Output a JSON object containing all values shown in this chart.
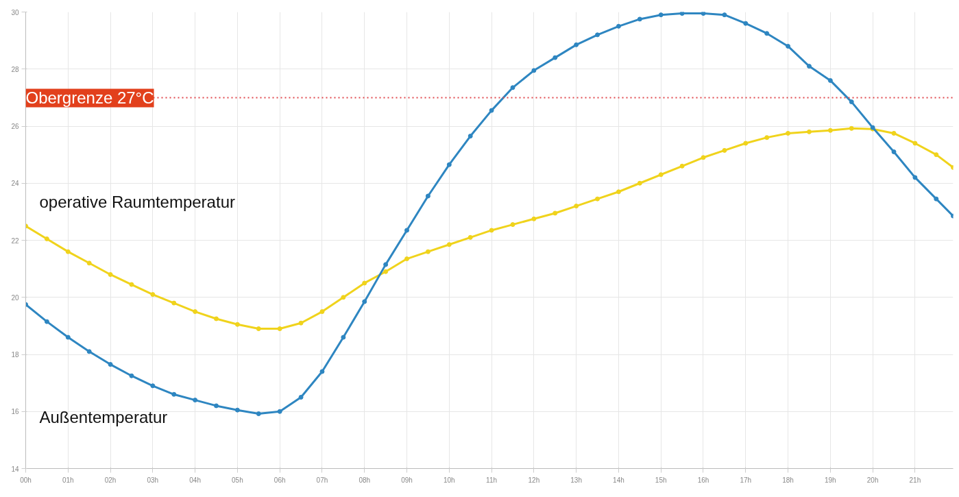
{
  "chart_data": {
    "type": "line",
    "x": [
      0,
      0.5,
      1,
      1.5,
      2,
      2.5,
      3,
      3.5,
      4,
      4.5,
      5,
      5.5,
      6,
      6.5,
      7,
      7.5,
      8,
      8.5,
      9,
      9.5,
      10,
      10.5,
      11,
      11.5,
      12,
      12.5,
      13,
      13.5,
      14,
      14.5,
      15,
      15.5,
      16,
      16.5,
      17,
      17.5,
      18,
      18.5,
      19,
      19.5,
      20,
      20.5,
      21,
      21.5,
      21.9
    ],
    "series": [
      {
        "name": "Außentemperatur",
        "color": "#2e86c1",
        "values": [
          19.75,
          19.15,
          18.6,
          18.1,
          17.65,
          17.25,
          16.9,
          16.6,
          16.4,
          16.2,
          16.05,
          15.92,
          16.0,
          16.5,
          17.4,
          18.6,
          19.85,
          21.15,
          22.35,
          23.55,
          24.65,
          25.65,
          26.55,
          27.35,
          27.95,
          28.4,
          28.85,
          29.2,
          29.5,
          29.75,
          29.9,
          29.95,
          29.95,
          29.9,
          29.6,
          29.25,
          28.8,
          28.1,
          27.6,
          26.85,
          25.95,
          25.1,
          24.2,
          23.45,
          22.85
        ]
      },
      {
        "name": "operative Raumtemperatur",
        "color": "#f0d31c",
        "values": [
          22.5,
          22.05,
          21.6,
          21.2,
          20.8,
          20.45,
          20.1,
          19.8,
          19.5,
          19.25,
          19.05,
          18.9,
          18.9,
          19.1,
          19.5,
          20.0,
          20.5,
          20.9,
          21.35,
          21.6,
          21.85,
          22.1,
          22.35,
          22.55,
          22.75,
          22.95,
          23.2,
          23.45,
          23.7,
          24.0,
          24.3,
          24.6,
          24.9,
          25.15,
          25.4,
          25.6,
          25.75,
          25.8,
          25.85,
          25.92,
          25.9,
          25.75,
          25.4,
          25.0,
          24.55
        ]
      }
    ],
    "xlim": [
      0,
      21.9
    ],
    "xticks": [
      {
        "value": 0,
        "label": "00h"
      },
      {
        "value": 1,
        "label": "01h"
      },
      {
        "value": 2,
        "label": "02h"
      },
      {
        "value": 3,
        "label": "03h"
      },
      {
        "value": 4,
        "label": "04h"
      },
      {
        "value": 5,
        "label": "05h"
      },
      {
        "value": 6,
        "label": "06h"
      },
      {
        "value": 7,
        "label": "07h"
      },
      {
        "value": 8,
        "label": "08h"
      },
      {
        "value": 9,
        "label": "09h"
      },
      {
        "value": 10,
        "label": "10h"
      },
      {
        "value": 11,
        "label": "11h"
      },
      {
        "value": 12,
        "label": "12h"
      },
      {
        "value": 13,
        "label": "13h"
      },
      {
        "value": 14,
        "label": "14h"
      },
      {
        "value": 15,
        "label": "15h"
      },
      {
        "value": 16,
        "label": "16h"
      },
      {
        "value": 17,
        "label": "17h"
      },
      {
        "value": 18,
        "label": "18h"
      },
      {
        "value": 19,
        "label": "19h"
      },
      {
        "value": 20,
        "label": "20h"
      },
      {
        "value": 21,
        "label": "21h"
      }
    ],
    "ylim": [
      14,
      30
    ],
    "yticks": [
      14,
      16,
      18,
      20,
      22,
      24,
      26,
      28,
      30
    ],
    "grid": true,
    "marker": "circle",
    "line_style": "solid",
    "ref_lines": [
      {
        "axis": "y",
        "value": 27,
        "label": "Obergrenze 27°C",
        "color": "#e0474c",
        "line_style": "dotted"
      }
    ]
  }
}
